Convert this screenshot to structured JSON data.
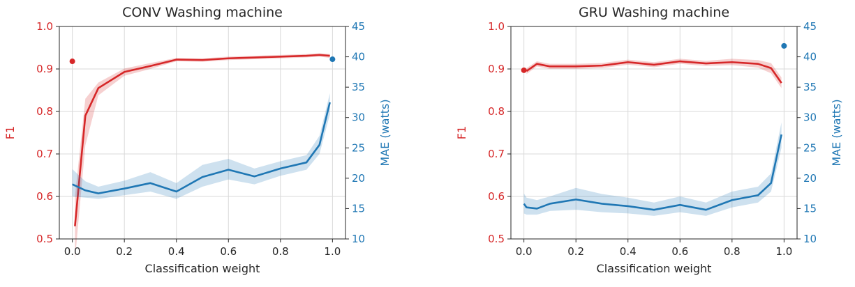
{
  "colors": {
    "f1": "#d62728",
    "mae": "#1f77b4",
    "grid": "#d9d9d9",
    "axis": "#262626"
  },
  "chart_data": [
    {
      "type": "line",
      "title": "CONV Washing machine",
      "xlabel": "Classification weight",
      "ylabel_left": "F1",
      "ylabel_right": "MAE (watts)",
      "xlim": [
        -0.05,
        1.05
      ],
      "ylim_left": [
        0.5,
        1.0
      ],
      "ylim_right": [
        10,
        45
      ],
      "grid": true,
      "xticks": [
        0.0,
        0.2,
        0.4,
        0.6,
        0.8,
        1.0
      ],
      "xtick_labels": [
        "0.0",
        "0.2",
        "0.4",
        "0.6",
        "0.8",
        "1.0"
      ],
      "yticks_left": [
        0.5,
        0.6,
        0.7,
        0.8,
        0.9,
        1.0
      ],
      "ytick_labels_left": [
        "0.5",
        "0.6",
        "0.7",
        "0.8",
        "0.9",
        "1.0"
      ],
      "yticks_right": [
        10,
        15,
        20,
        25,
        30,
        35,
        40,
        45
      ],
      "ytick_labels_right": [
        "10",
        "15",
        "20",
        "25",
        "30",
        "35",
        "40",
        "45"
      ],
      "series": [
        {
          "axis": "left",
          "x": [
            0.01,
            0.05,
            0.1,
            0.2,
            0.3,
            0.4,
            0.5,
            0.6,
            0.7,
            0.8,
            0.9,
            0.95,
            0.99
          ],
          "y": [
            0.53,
            0.79,
            0.855,
            0.893,
            0.907,
            0.922,
            0.921,
            0.925,
            0.927,
            0.929,
            0.931,
            0.933,
            0.931
          ],
          "lo": [
            0.45,
            0.72,
            0.838,
            0.884,
            0.9,
            0.918,
            0.917,
            0.921,
            0.923,
            0.925,
            0.927,
            0.929,
            0.926
          ],
          "hi": [
            0.6,
            0.83,
            0.868,
            0.901,
            0.914,
            0.926,
            0.925,
            0.929,
            0.931,
            0.933,
            0.935,
            0.937,
            0.935
          ],
          "point": {
            "x": 0.0,
            "y": 0.918
          }
        },
        {
          "axis": "right",
          "x": [
            0.0,
            0.05,
            0.1,
            0.2,
            0.3,
            0.4,
            0.5,
            0.6,
            0.7,
            0.8,
            0.9,
            0.95,
            0.99
          ],
          "y": [
            19.0,
            18.0,
            17.5,
            18.3,
            19.2,
            17.8,
            20.2,
            21.4,
            20.3,
            21.6,
            22.6,
            25.5,
            32.5
          ],
          "lo": [
            17.0,
            16.8,
            16.6,
            17.2,
            17.8,
            16.6,
            18.6,
            19.8,
            19.0,
            20.4,
            21.4,
            24.0,
            30.5
          ],
          "hi": [
            21.5,
            19.5,
            18.6,
            19.6,
            21.0,
            19.2,
            22.2,
            23.2,
            21.6,
            22.8,
            23.8,
            27.0,
            34.0
          ],
          "point": {
            "x": 1.0,
            "y": 39.6
          }
        }
      ]
    },
    {
      "type": "line",
      "title": "GRU Washing machine",
      "xlabel": "Classification weight",
      "ylabel_left": "F1",
      "ylabel_right": "MAE (watts)",
      "xlim": [
        -0.05,
        1.05
      ],
      "ylim_left": [
        0.5,
        1.0
      ],
      "ylim_right": [
        10,
        45
      ],
      "grid": true,
      "xticks": [
        0.0,
        0.2,
        0.4,
        0.6,
        0.8,
        1.0
      ],
      "xtick_labels": [
        "0.0",
        "0.2",
        "0.4",
        "0.6",
        "0.8",
        "1.0"
      ],
      "yticks_left": [
        0.5,
        0.6,
        0.7,
        0.8,
        0.9,
        1.0
      ],
      "ytick_labels_left": [
        "0.5",
        "0.6",
        "0.7",
        "0.8",
        "0.9",
        "1.0"
      ],
      "yticks_right": [
        10,
        15,
        20,
        25,
        30,
        35,
        40,
        45
      ],
      "ytick_labels_right": [
        "10",
        "15",
        "20",
        "25",
        "30",
        "35",
        "40",
        "45"
      ],
      "series": [
        {
          "axis": "left",
          "x": [
            0.01,
            0.05,
            0.1,
            0.2,
            0.3,
            0.4,
            0.5,
            0.6,
            0.7,
            0.8,
            0.9,
            0.95,
            0.99
          ],
          "y": [
            0.895,
            0.912,
            0.906,
            0.906,
            0.908,
            0.916,
            0.91,
            0.918,
            0.913,
            0.916,
            0.912,
            0.902,
            0.867
          ],
          "lo": [
            0.888,
            0.906,
            0.9,
            0.9,
            0.902,
            0.91,
            0.904,
            0.912,
            0.907,
            0.909,
            0.903,
            0.89,
            0.855
          ],
          "hi": [
            0.902,
            0.918,
            0.912,
            0.912,
            0.914,
            0.922,
            0.916,
            0.924,
            0.919,
            0.924,
            0.921,
            0.914,
            0.88
          ],
          "point": {
            "x": 0.0,
            "y": 0.897
          }
        },
        {
          "axis": "right",
          "x": [
            0.0,
            0.01,
            0.05,
            0.1,
            0.2,
            0.3,
            0.4,
            0.5,
            0.6,
            0.7,
            0.8,
            0.9,
            0.95,
            0.99
          ],
          "y": [
            15.8,
            15.2,
            15.0,
            15.8,
            16.5,
            15.8,
            15.4,
            14.8,
            15.6,
            14.8,
            16.4,
            17.2,
            19.2,
            27.2
          ],
          "lo": [
            14.2,
            14.0,
            14.0,
            14.6,
            14.8,
            14.4,
            14.2,
            13.8,
            14.4,
            13.8,
            15.2,
            16.0,
            17.8,
            25.0
          ],
          "hi": [
            17.5,
            16.8,
            16.4,
            17.0,
            18.4,
            17.4,
            16.8,
            16.0,
            17.0,
            16.0,
            17.8,
            18.6,
            20.8,
            29.2
          ],
          "point": {
            "x": 1.0,
            "y": 41.8
          }
        }
      ]
    }
  ]
}
